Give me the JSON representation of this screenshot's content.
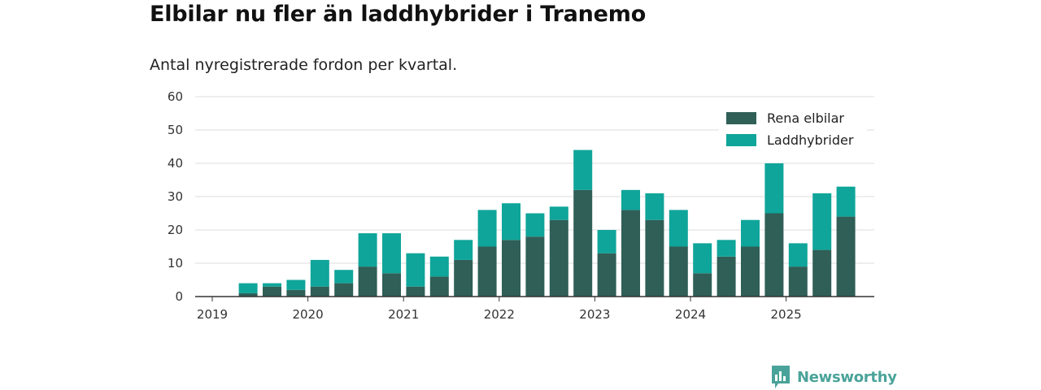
{
  "header": {
    "title": "Elbilar nu fler än laddhybrider i Tranemo",
    "subtitle": "Antal nyregistrerade fordon per kvartal."
  },
  "brand": {
    "name": "Newsworthy",
    "logo_icon": "bar-chart-bubble-icon",
    "color": "#4aa39a"
  },
  "chart_data": {
    "type": "bar",
    "stacked": true,
    "title": "Elbilar nu fler än laddhybrider i Tranemo",
    "subtitle": "Antal nyregistrerade fordon per kvartal.",
    "xlabel": "",
    "ylabel": "",
    "ylim": [
      0,
      60
    ],
    "yticks": [
      0,
      10,
      20,
      30,
      40,
      50,
      60
    ],
    "grid": true,
    "legend_position": "top-right",
    "xticks": [
      {
        "label": "2019",
        "index": -0.5
      },
      {
        "label": "2020",
        "index": 3.5
      },
      {
        "label": "2021",
        "index": 7.5
      },
      {
        "label": "2022",
        "index": 11.5
      },
      {
        "label": "2023",
        "index": 15.5
      },
      {
        "label": "2024",
        "index": 19.5
      },
      {
        "label": "2025",
        "index": 23.5
      }
    ],
    "categories": [
      "2019 K1",
      "2019 K2",
      "2019 K3",
      "2019 K4",
      "2020 K1",
      "2020 K2",
      "2020 K3",
      "2020 K4",
      "2021 K1",
      "2021 K2",
      "2021 K3",
      "2021 K4",
      "2022 K1",
      "2022 K2",
      "2022 K3",
      "2022 K4",
      "2023 K1",
      "2023 K2",
      "2023 K3",
      "2023 K4",
      "2024 K1",
      "2024 K2",
      "2024 K3",
      "2024 K4",
      "2025 K1",
      "2025 K2",
      "2025 K3"
    ],
    "series": [
      {
        "name": "Rena elbilar",
        "color": "#2f5f57",
        "values": [
          0,
          1,
          3,
          2,
          3,
          4,
          9,
          7,
          3,
          6,
          11,
          15,
          17,
          18,
          23,
          32,
          13,
          26,
          23,
          15,
          7,
          12,
          15,
          25,
          9,
          14,
          24
        ]
      },
      {
        "name": "Laddhybrider",
        "color": "#0fa59a",
        "values": [
          0,
          3,
          1,
          3,
          8,
          4,
          10,
          12,
          10,
          6,
          6,
          11,
          11,
          7,
          4,
          12,
          7,
          6,
          8,
          11,
          9,
          5,
          8,
          15,
          7,
          17,
          9
        ]
      }
    ]
  }
}
